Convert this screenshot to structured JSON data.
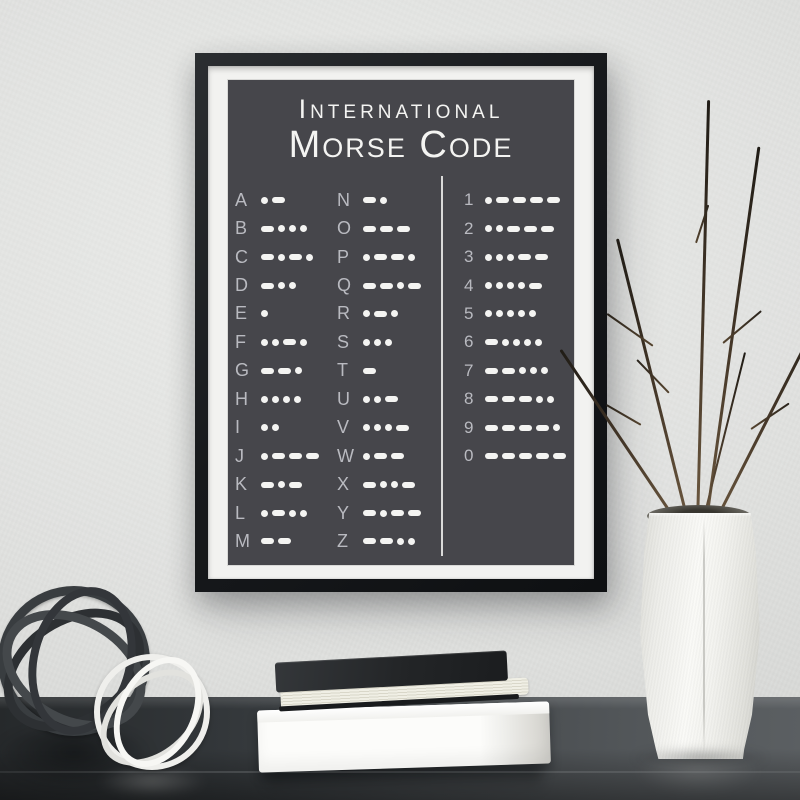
{
  "poster": {
    "title_line1": "International",
    "title_line2": "Morse Code",
    "columns": [
      {
        "name": "letters-a-m",
        "entries": [
          {
            "char": "A",
            "code": ".-"
          },
          {
            "char": "B",
            "code": "-..."
          },
          {
            "char": "C",
            "code": "-.-."
          },
          {
            "char": "D",
            "code": "-.."
          },
          {
            "char": "E",
            "code": "."
          },
          {
            "char": "F",
            "code": "..-."
          },
          {
            "char": "G",
            "code": "--."
          },
          {
            "char": "H",
            "code": "...."
          },
          {
            "char": "I",
            "code": ".."
          },
          {
            "char": "J",
            "code": ".---"
          },
          {
            "char": "K",
            "code": "-.-"
          },
          {
            "char": "L",
            "code": ".-.."
          },
          {
            "char": "M",
            "code": "--"
          }
        ]
      },
      {
        "name": "letters-n-z",
        "entries": [
          {
            "char": "N",
            "code": "-."
          },
          {
            "char": "O",
            "code": "---"
          },
          {
            "char": "P",
            "code": ".--."
          },
          {
            "char": "Q",
            "code": "--.-"
          },
          {
            "char": "R",
            "code": ".-."
          },
          {
            "char": "S",
            "code": "..."
          },
          {
            "char": "T",
            "code": "-"
          },
          {
            "char": "U",
            "code": "..-"
          },
          {
            "char": "V",
            "code": "...-"
          },
          {
            "char": "W",
            "code": ".--"
          },
          {
            "char": "X",
            "code": "-..-"
          },
          {
            "char": "Y",
            "code": "-.--"
          },
          {
            "char": "Z",
            "code": "--.."
          }
        ]
      },
      {
        "name": "digits-1-0",
        "entries": [
          {
            "char": "1",
            "code": ".----"
          },
          {
            "char": "2",
            "code": "..---"
          },
          {
            "char": "3",
            "code": "...--"
          },
          {
            "char": "4",
            "code": "....-"
          },
          {
            "char": "5",
            "code": "....."
          },
          {
            "char": "6",
            "code": "-...."
          },
          {
            "char": "7",
            "code": "--..."
          },
          {
            "char": "8",
            "code": "---.."
          },
          {
            "char": "9",
            "code": "----."
          },
          {
            "char": "0",
            "code": "-----"
          }
        ]
      }
    ]
  },
  "colors": {
    "poster_bg": "#46464b",
    "poster_text": "#f4f4f2",
    "label": "#b9bac0",
    "mat": "#f2f2f0",
    "frame": "#17191c",
    "wall": "#e3e4e2",
    "desk": "#45494c",
    "book_black": "#232527",
    "book_white": "#f6f6f3",
    "vase_white": "#f2f2ee",
    "branch_brown": "#4a3b2a",
    "orb_dark": "#35393c",
    "orb_white": "#efefec"
  }
}
